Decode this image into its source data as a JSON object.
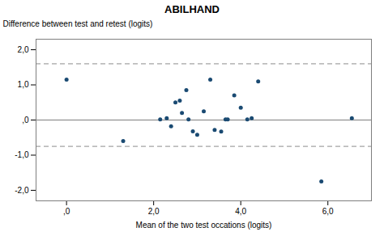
{
  "chart_data": {
    "type": "scatter",
    "title": "ABILHAND",
    "xlabel": "Mean of the two test occations (logits)",
    "ylabel": "Difference between test and retest (logits)",
    "x": [
      0.0,
      1.3,
      2.15,
      2.3,
      2.4,
      2.5,
      2.6,
      2.65,
      2.75,
      2.8,
      2.9,
      3.0,
      3.15,
      3.3,
      3.4,
      3.55,
      3.65,
      3.7,
      3.85,
      4.0,
      4.15,
      4.25,
      4.4,
      5.85,
      6.55
    ],
    "values": [
      1.15,
      -0.6,
      0.02,
      0.05,
      -0.18,
      0.5,
      0.55,
      0.2,
      0.85,
      0.02,
      -0.32,
      -0.42,
      0.25,
      1.15,
      -0.28,
      -0.33,
      0.02,
      0.02,
      0.7,
      0.35,
      0.02,
      0.05,
      1.1,
      -1.75,
      0.05
    ],
    "color": "#1a4a72",
    "xlim": [
      -0.7,
      7.0
    ],
    "ylim": [
      -2.3,
      2.3
    ],
    "xticks": [
      {
        "value": 0.0,
        "label": ",0"
      },
      {
        "value": 2.0,
        "label": "2,0"
      },
      {
        "value": 4.0,
        "label": "4,0"
      },
      {
        "value": 6.0,
        "label": "6,0"
      }
    ],
    "yticks": [
      {
        "value": -2.0,
        "label": "-2,0"
      },
      {
        "value": -1.0,
        "label": "-1,0"
      },
      {
        "value": 0.0,
        "label": ",0"
      },
      {
        "value": 1.0,
        "label": "1,0"
      },
      {
        "value": 2.0,
        "label": "2,0"
      }
    ],
    "hlines": [
      {
        "value": 0.0,
        "line_style": "solid",
        "color": "#7f7f7f"
      },
      {
        "value": 1.6,
        "line_style": "dashed",
        "color": "#7f7f7f"
      },
      {
        "value": -0.75,
        "line_style": "dashed",
        "color": "#7f7f7f"
      }
    ],
    "grid": false
  }
}
